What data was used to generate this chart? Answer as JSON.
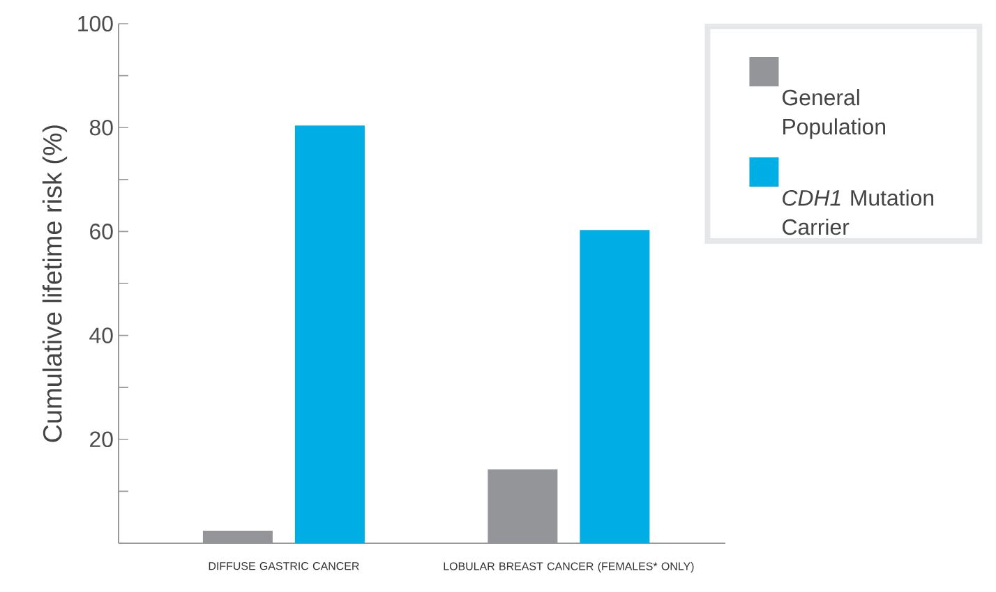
{
  "chart_data": {
    "type": "bar",
    "ylabel": "Cumulative lifetime risk (%)",
    "categories": [
      "DIFFUSE GASTRIC CANCER",
      "LOBULAR BREAST CANCER (FEMALES* ONLY)"
    ],
    "series": [
      {
        "name": "General Population",
        "color": "#939598",
        "values": [
          2.4,
          14.2
        ]
      },
      {
        "name": "*CDH1* Mutation Carrier",
        "color": "#00aee6",
        "values": [
          80.4,
          60.3
        ]
      }
    ],
    "ylim": [
      0,
      100
    ],
    "yticks": [
      {
        "value": 10,
        "label": null
      },
      20,
      {
        "value": 30,
        "label": null
      },
      40,
      {
        "value": 50,
        "label": null
      },
      60,
      {
        "value": 70,
        "label": null
      },
      80,
      {
        "value": 90,
        "label": null
      },
      100
    ],
    "legend": "right"
  }
}
